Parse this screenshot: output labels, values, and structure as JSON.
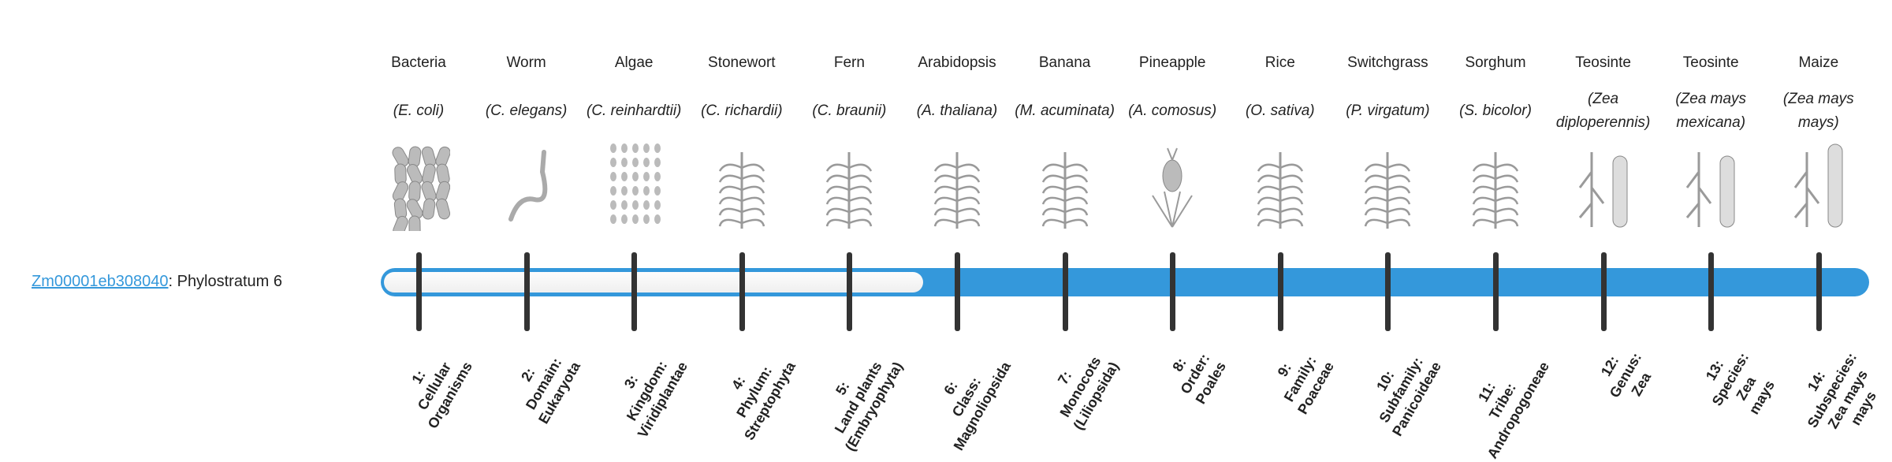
{
  "gene": {
    "id": "Zm00001eb308040",
    "suffix": ": Phylostratum 6",
    "phylostratum": 6
  },
  "colors": {
    "bar": "#3498db",
    "tick": "#333333",
    "empty": "#f4f4f4"
  },
  "organisms": [
    {
      "common": "Bacteria",
      "sci": "E. coli",
      "icon": "bacteria-icon"
    },
    {
      "common": "Worm",
      "sci": "C. elegans",
      "icon": "worm-icon"
    },
    {
      "common": "Algae",
      "sci": "C. reinhardtii",
      "icon": "algae-icon"
    },
    {
      "common": "Stonewort",
      "sci": "C. richardii",
      "icon": "stonewort-icon"
    },
    {
      "common": "Fern",
      "sci": "C. braunii",
      "icon": "fern-icon"
    },
    {
      "common": "Arabidopsis",
      "sci": "A. thaliana",
      "icon": "arabidopsis-icon"
    },
    {
      "common": "Banana",
      "sci": "M. acuminata",
      "icon": "banana-icon"
    },
    {
      "common": "Pineapple",
      "sci": "A. comosus",
      "icon": "pineapple-icon"
    },
    {
      "common": "Rice",
      "sci": "O. sativa",
      "icon": "rice-icon"
    },
    {
      "common": "Switchgrass",
      "sci": "P. virgatum",
      "icon": "switchgrass-icon"
    },
    {
      "common": "Sorghum",
      "sci": "S. bicolor",
      "icon": "sorghum-icon"
    },
    {
      "common": "Teosinte",
      "sci": "Zea diploperennis",
      "icon": "teosinte-icon"
    },
    {
      "common": "Teosinte",
      "sci": "Zea mays mexicana",
      "icon": "teosinte-icon"
    },
    {
      "common": "Maize",
      "sci": "Zea mays mays",
      "icon": "maize-icon"
    }
  ],
  "strata": [
    [
      "1:",
      "Cellular",
      "Organisms"
    ],
    [
      "2:",
      "Domain:",
      "Eukaryota"
    ],
    [
      "3:",
      "Kingdom:",
      "Viridiplantae"
    ],
    [
      "4:",
      "Phylum:",
      "Streptophyta"
    ],
    [
      "5:",
      "Land plants",
      "(Embryophyta)"
    ],
    [
      "6:",
      "Class:",
      "Magnoliopsida"
    ],
    [
      "7:",
      "Monocots",
      "(Liliopsida)"
    ],
    [
      "8:",
      "Order:",
      "Poales"
    ],
    [
      "9:",
      "Family:",
      "Poaceae"
    ],
    [
      "10:",
      "Subfamily:",
      "Panicoideae"
    ],
    [
      "11:",
      "Tribe:",
      "Andropogoneae"
    ],
    [
      "12:",
      "Genus:",
      "Zea"
    ],
    [
      "13:",
      "Species:",
      "Zea",
      "mays"
    ],
    [
      "14:",
      "Subspecies:",
      "Zea mays",
      "mays"
    ]
  ]
}
